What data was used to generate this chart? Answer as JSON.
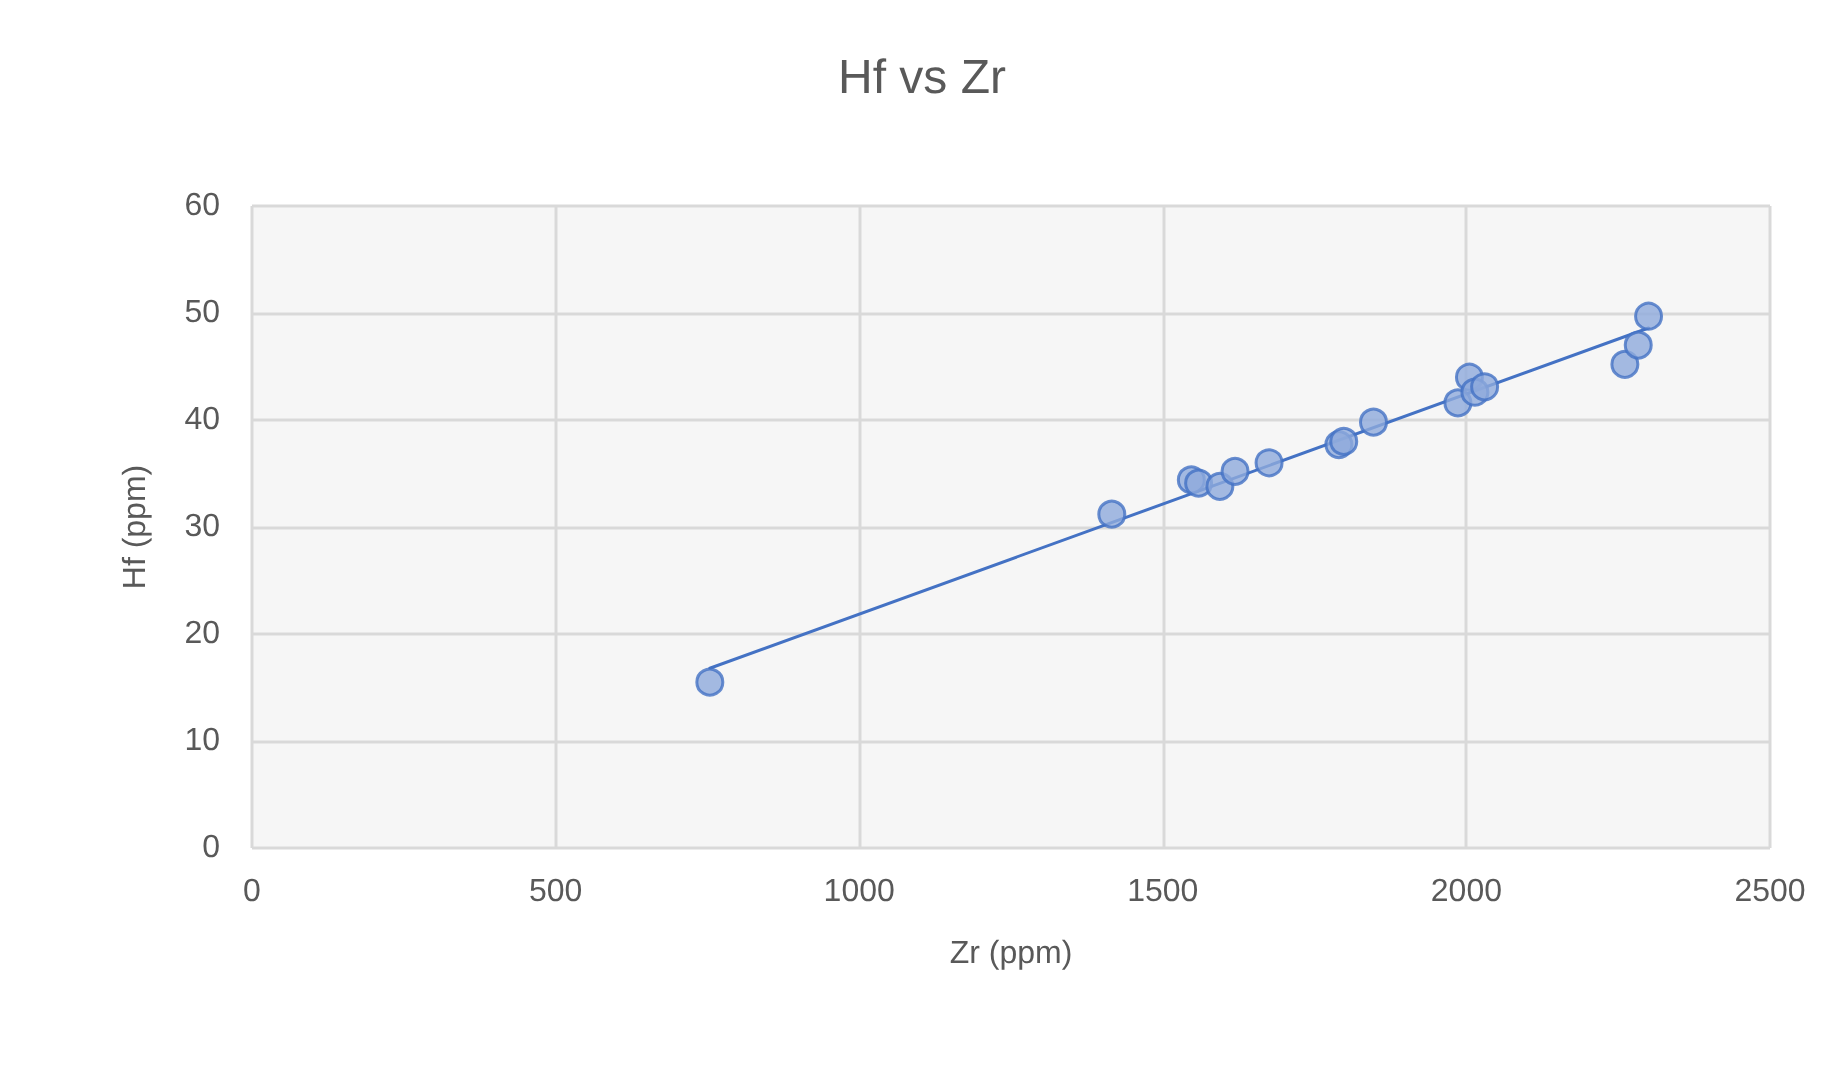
{
  "chart_data": {
    "type": "scatter",
    "title": "Hf vs Zr",
    "xlabel": "Zr (ppm)",
    "ylabel": "Hf (ppm)",
    "xlim": [
      0,
      2500
    ],
    "xticks": [
      0,
      500,
      1000,
      1500,
      2000,
      2500
    ],
    "ylim": [
      0,
      60
    ],
    "yticks": [
      0,
      10,
      20,
      30,
      40,
      50,
      60
    ],
    "grid": true,
    "marker": "circle",
    "series": [
      {
        "color": "#8faadc",
        "x": [
          754,
          1416,
          1547,
          1559,
          1594,
          1619,
          1675,
          1790,
          1798,
          1847,
          1986,
          2005,
          2014,
          2030,
          2261,
          2283,
          2300
        ],
        "values": [
          15.5,
          31.2,
          34.4,
          34.1,
          33.8,
          35.2,
          36.0,
          37.7,
          38.0,
          39.8,
          41.6,
          44.0,
          42.6,
          43.1,
          45.2,
          47.0,
          49.7
        ]
      },
      {
        "type": "line",
        "color": "#4472c4",
        "marker": "none",
        "line_style": "solid",
        "x": [
          754,
          2300
        ],
        "values": [
          16.8,
          48.6
        ]
      }
    ]
  }
}
